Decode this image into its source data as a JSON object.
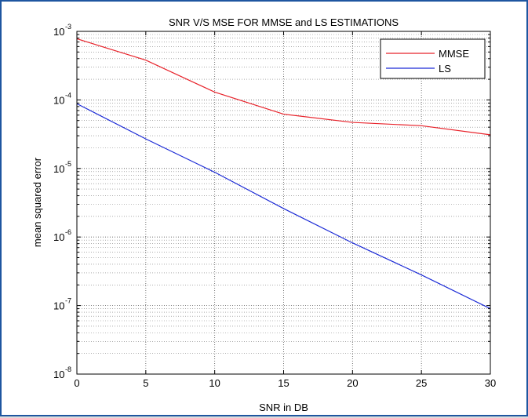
{
  "chart_data": {
    "type": "line",
    "title": "SNR V/S MSE FOR MMSE and LS ESTIMATIONS",
    "xlabel": "SNR in DB",
    "ylabel": "mean squared error",
    "xlim": [
      0,
      30
    ],
    "ylim": [
      1e-08,
      0.001
    ],
    "yscale": "log",
    "grid": true,
    "grid_minor": true,
    "legend_position": "top-right",
    "x_ticks": [
      0,
      5,
      10,
      15,
      20,
      25,
      30
    ],
    "y_ticks": [
      {
        "value": 1e-08,
        "base": "10",
        "exp": "-8"
      },
      {
        "value": 1e-07,
        "base": "10",
        "exp": "-7"
      },
      {
        "value": 1e-06,
        "base": "10",
        "exp": "-6"
      },
      {
        "value": 1e-05,
        "base": "10",
        "exp": "-5"
      },
      {
        "value": 0.0001,
        "base": "10",
        "exp": "-4"
      },
      {
        "value": 0.001,
        "base": "10",
        "exp": "-3"
      }
    ],
    "series": [
      {
        "name": "MMSE",
        "color": "#e8232b",
        "x": [
          0,
          5,
          10,
          15,
          20,
          25,
          30
        ],
        "y": [
          0.00078,
          0.00038,
          0.00013,
          6.2e-05,
          4.7e-05,
          4.2e-05,
          3.1e-05
        ]
      },
      {
        "name": "LS",
        "color": "#1c2bd6",
        "x": [
          0,
          5,
          10,
          15,
          20,
          25,
          30
        ],
        "y": [
          8.8e-05,
          2.7e-05,
          8.8e-06,
          2.6e-06,
          8.2e-07,
          2.8e-07,
          9e-08
        ]
      }
    ]
  }
}
